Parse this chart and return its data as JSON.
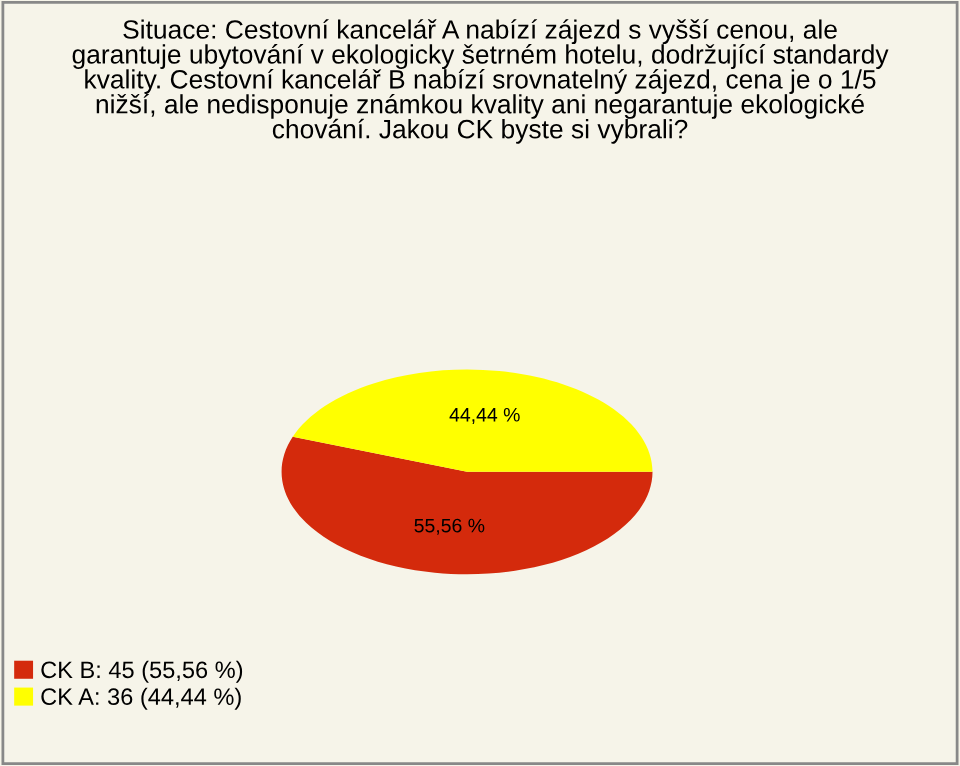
{
  "chart_data": {
    "type": "pie",
    "title": "Situace: Cestovní kancelář A nabízí zájezd s vyšší cenou, ale\ngarantuje ubytování v ekologicky šetrném hotelu, dodržující standardy\nkvality. Cestovní kancelář B nabízí srovnatelný zájezd, cena je o 1/5\nnižší, ale nedisponuje známkou kvality ani negarantuje ekologické\nchování. Jakou CK byste si vybrali?",
    "categories": [
      "CK B: 45 (55,56 %)",
      "CK A: 36 (44,44 %)"
    ],
    "values": [
      55.56,
      44.44
    ],
    "colors": [
      "#d42a0c",
      "#ffff00"
    ],
    "value_labels": [
      "55,56 %",
      "44,44 %"
    ],
    "legend": "bottom left"
  }
}
